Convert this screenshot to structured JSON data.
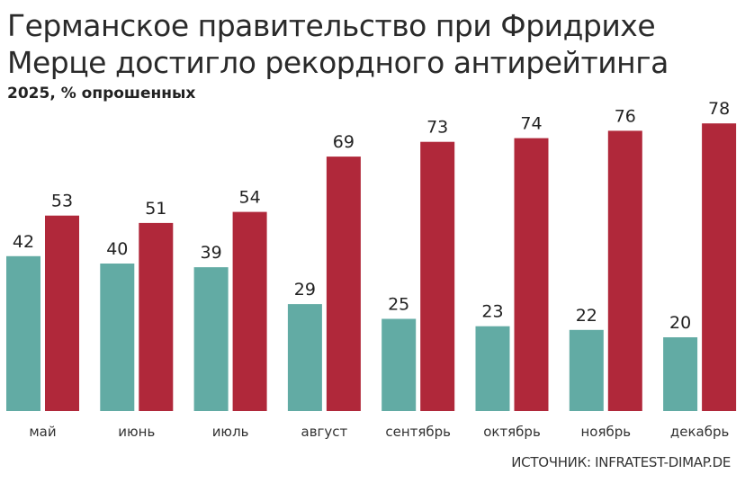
{
  "chart_data": {
    "type": "bar",
    "title": "Германское правительство при Фридрихе Мерце достигло рекордного антирейтинга",
    "subtitle": "2025, % опрошенных",
    "categories": [
      "май",
      "июнь",
      "июль",
      "август",
      "сентябрь",
      "октябрь",
      "ноябрь",
      "декабрь"
    ],
    "series": [
      {
        "name": "teal",
        "color": "#62aba4",
        "values": [
          42,
          40,
          39,
          29,
          25,
          23,
          22,
          20
        ]
      },
      {
        "name": "red",
        "color": "#b0283a",
        "values": [
          53,
          51,
          54,
          69,
          73,
          74,
          76,
          78
        ]
      }
    ],
    "xlabel": "",
    "ylabel": "",
    "ylim": [
      0,
      80
    ],
    "grid": false,
    "source": "ИСТОЧНИК: INFRATEST-DIMAP.DE"
  }
}
